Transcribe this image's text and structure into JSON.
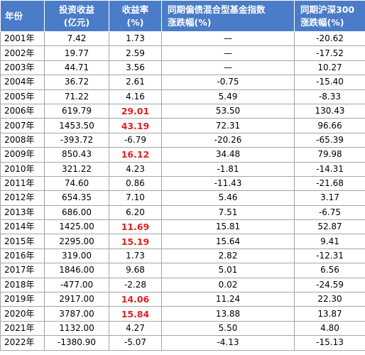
{
  "headers": {
    "year": "年份",
    "income": [
      "投资收益",
      "(亿元)"
    ],
    "rate": [
      "收益率",
      "(%)"
    ],
    "bond": [
      "同期偏债混合型基金指数",
      "涨跌幅(%)"
    ],
    "hs300": [
      "同期沪深300",
      "涨跌幅(%)"
    ]
  },
  "highlight_color": "#e21f1f",
  "header_bg": "#4a7cc7",
  "rows": [
    {
      "year": "2001年",
      "income": "7.42",
      "rate": "1.73",
      "bond": "—",
      "hs300": "-20.62",
      "highlight": false
    },
    {
      "year": "2002年",
      "income": "19.77",
      "rate": "2.59",
      "bond": "—",
      "hs300": "-17.52",
      "highlight": false
    },
    {
      "year": "2003年",
      "income": "44.71",
      "rate": "3.56",
      "bond": "—",
      "hs300": "10.27",
      "highlight": false
    },
    {
      "year": "2004年",
      "income": "36.72",
      "rate": "2.61",
      "bond": "-0.75",
      "hs300": "-15.40",
      "highlight": false
    },
    {
      "year": "2005年",
      "income": "71.22",
      "rate": "4.16",
      "bond": "5.49",
      "hs300": "-8.33",
      "highlight": false
    },
    {
      "year": "2006年",
      "income": "619.79",
      "rate": "29.01",
      "bond": "53.50",
      "hs300": "130.43",
      "highlight": true
    },
    {
      "year": "2007年",
      "income": "1453.50",
      "rate": "43.19",
      "bond": "72.31",
      "hs300": "96.66",
      "highlight": true
    },
    {
      "year": "2008年",
      "income": "-393.72",
      "rate": "-6.79",
      "bond": "-20.26",
      "hs300": "-65.39",
      "highlight": false
    },
    {
      "year": "2009年",
      "income": "850.43",
      "rate": "16.12",
      "bond": "34.48",
      "hs300": "79.98",
      "highlight": true
    },
    {
      "year": "2010年",
      "income": "321.22",
      "rate": "4.23",
      "bond": "-1.81",
      "hs300": "-14.31",
      "highlight": false
    },
    {
      "year": "2011年",
      "income": "74.60",
      "rate": "0.86",
      "bond": "-11.43",
      "hs300": "-21.68",
      "highlight": false
    },
    {
      "year": "2012年",
      "income": "654.35",
      "rate": "7.10",
      "bond": "5.46",
      "hs300": "3.17",
      "highlight": false
    },
    {
      "year": "2013年",
      "income": "686.00",
      "rate": "6.20",
      "bond": "7.51",
      "hs300": "-6.75",
      "highlight": false
    },
    {
      "year": "2014年",
      "income": "1425.00",
      "rate": "11.69",
      "bond": "15.81",
      "hs300": "52.87",
      "highlight": true
    },
    {
      "year": "2015年",
      "income": "2295.00",
      "rate": "15.19",
      "bond": "15.64",
      "hs300": "9.41",
      "highlight": true
    },
    {
      "year": "2016年",
      "income": "319.00",
      "rate": "1.73",
      "bond": "2.82",
      "hs300": "-12.31",
      "highlight": false
    },
    {
      "year": "2017年",
      "income": "1846.00",
      "rate": "9.68",
      "bond": "5.01",
      "hs300": "6.56",
      "highlight": false
    },
    {
      "year": "2018年",
      "income": "-477.00",
      "rate": "-2.28",
      "bond": "0.02",
      "hs300": "-24.59",
      "highlight": false
    },
    {
      "year": "2019年",
      "income": "2917.00",
      "rate": "14.06",
      "bond": "11.24",
      "hs300": "22.30",
      "highlight": true
    },
    {
      "year": "2020年",
      "income": "3787.00",
      "rate": "15.84",
      "bond": "13.88",
      "hs300": "13.87",
      "highlight": true
    },
    {
      "year": "2021年",
      "income": "1132.00",
      "rate": "4.27",
      "bond": "5.50",
      "hs300": "4.80",
      "highlight": false
    },
    {
      "year": "2022年",
      "income": "-1380.90",
      "rate": "-5.07",
      "bond": "-4.13",
      "hs300": "-15.13",
      "highlight": false
    }
  ]
}
